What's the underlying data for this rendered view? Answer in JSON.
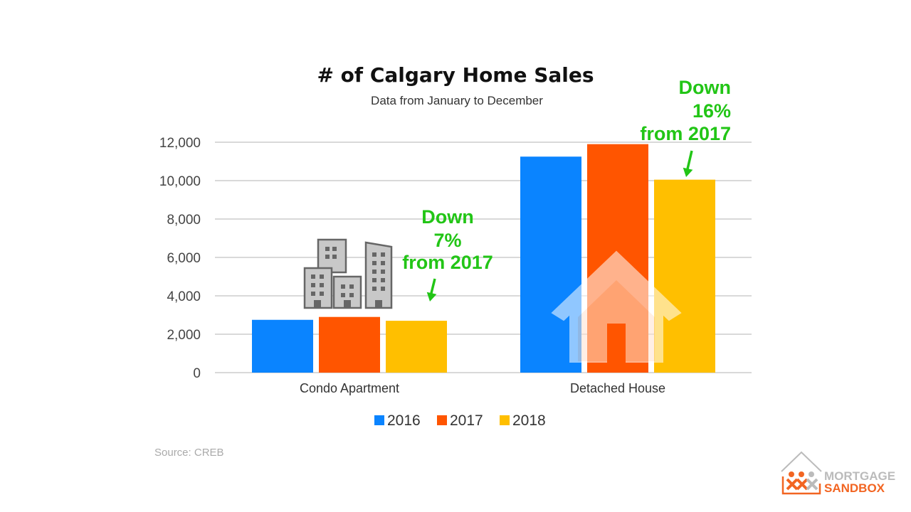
{
  "chart_data": {
    "type": "bar",
    "title": "# of Calgary Home Sales",
    "subtitle": "Data from January to December",
    "categories": [
      "Condo Apartment",
      "Detached House"
    ],
    "series": [
      {
        "name": "2016",
        "color": "#0a84ff",
        "values": [
          2750,
          11250
        ]
      },
      {
        "name": "2017",
        "color": "#ff5500",
        "values": [
          2900,
          11900
        ]
      },
      {
        "name": "2018",
        "color": "#ffbf00",
        "values": [
          2700,
          10050
        ]
      }
    ],
    "ylim": [
      0,
      12000
    ],
    "yticks": [
      "0",
      "2,000",
      "4,000",
      "6,000",
      "8,000",
      "10,000",
      "12,000"
    ],
    "ytick_values": [
      0,
      2000,
      4000,
      6000,
      8000,
      10000,
      12000
    ],
    "grid": true,
    "legend_position": "bottom",
    "annotations": [
      {
        "lines": [
          "Down",
          "7%",
          "from 2017"
        ],
        "category": "Condo Apartment"
      },
      {
        "lines": [
          "Down",
          "16%",
          "from 2017"
        ],
        "category": "Detached House"
      }
    ],
    "annotation_color": "#22c516"
  },
  "source": "Source: CREB",
  "logo": {
    "line1": "MORTGAGE",
    "line2": "SANDBOX",
    "color": "#f26522"
  },
  "icons": {
    "condo": "apartment-buildings-icon",
    "house": "house-icon"
  }
}
